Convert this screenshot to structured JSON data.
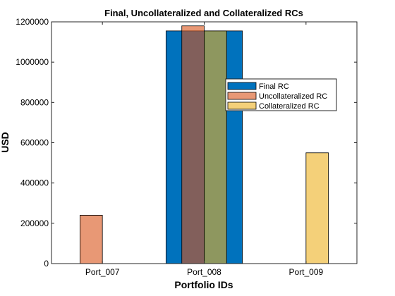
{
  "chart_data": {
    "type": "bar",
    "title": "Final, Uncollateralized and Collateralized RCs",
    "xlabel": "Portfolio IDs",
    "ylabel": "USD",
    "categories": [
      "Port_007",
      "Port_008",
      "Port_009"
    ],
    "xlim": [
      0.5,
      3.5
    ],
    "ylim": [
      0,
      1200000
    ],
    "yticks": [
      0,
      200000,
      400000,
      600000,
      800000,
      1000000,
      1200000
    ],
    "grid": false,
    "legend_location": "right, upper-middle",
    "series": [
      {
        "name": "Final RC",
        "values": [
          0,
          1155000,
          0
        ],
        "color": "#0072BD",
        "alpha": 1.0,
        "width": 0.75
      },
      {
        "name": "Uncollateralized RC",
        "values": [
          240000,
          1180000,
          0
        ],
        "color": "#D95319",
        "alpha": 0.6,
        "width": 0.22
      },
      {
        "name": "Collateralized RC",
        "values": [
          0,
          1155000,
          550000
        ],
        "color": "#EDB120",
        "alpha": 0.6,
        "width": 0.22
      }
    ]
  }
}
